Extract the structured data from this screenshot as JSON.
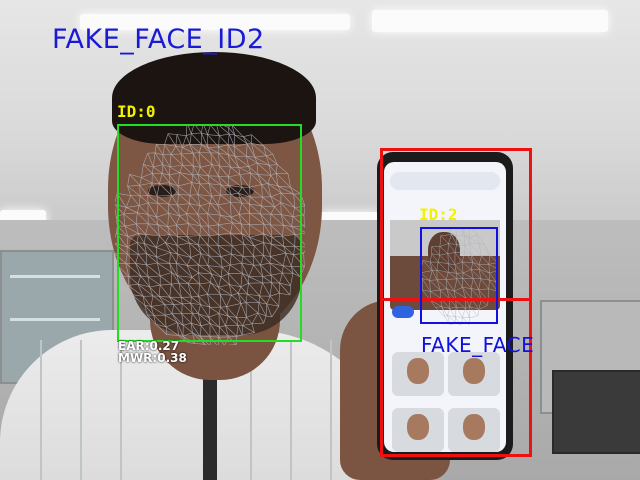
{
  "overlay": {
    "title": "FAKE_FACE_ID2",
    "faces": [
      {
        "id_label": "ID:0",
        "box_color": "#22dd22",
        "label_color": "#f2f200"
      },
      {
        "id_label": "ID:2",
        "box_color": "#1010e0",
        "label_color": "#f2f200"
      }
    ],
    "fake_region": {
      "box_color": "#ee1111"
    },
    "fake_label": "FAKE_FACE",
    "metrics": {
      "ear": "EAR:0.27",
      "mwr": "MWR:0.38"
    },
    "colors": {
      "title": "#1a1ad6",
      "fake_label": "#1010e0",
      "metrics": "#ffffff",
      "mesh": "#b0b4bc"
    }
  }
}
